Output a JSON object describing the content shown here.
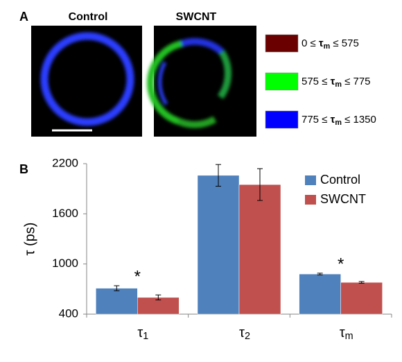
{
  "panel_a": {
    "label": "A",
    "images": [
      "Control",
      "SWCNT"
    ],
    "legend": [
      {
        "color": "#6b0000",
        "text": "0 ≤ τm ≤ 575"
      },
      {
        "color": "#00ff00",
        "text": "575 ≤ τm ≤ 775"
      },
      {
        "color": "#0000ff",
        "text": "775 ≤ τm ≤ 1350"
      }
    ]
  },
  "chart_data": {
    "type": "bar",
    "panel_label": "B",
    "ylabel": "τ (ps)",
    "categories": [
      "τ1",
      "τ2",
      "τm"
    ],
    "series": [
      {
        "name": "Control",
        "color": "#4f81bd",
        "values": [
          710,
          2060,
          880
        ],
        "errors": [
          30,
          130,
          10
        ]
      },
      {
        "name": "SWCNT",
        "color": "#c0504d",
        "values": [
          600,
          1950,
          780
        ],
        "errors": [
          30,
          190,
          10
        ]
      }
    ],
    "annotations": [
      {
        "category": 0,
        "text": "*"
      },
      {
        "category": 2,
        "text": "*"
      }
    ],
    "ylim": [
      400,
      2200
    ],
    "yticks": [
      400,
      1000,
      1600,
      2200
    ],
    "grid": false,
    "legend": "top-right"
  }
}
